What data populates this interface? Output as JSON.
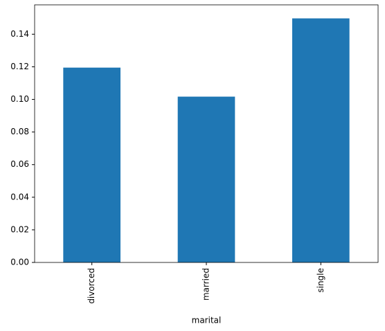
{
  "chart_data": {
    "type": "bar",
    "xlabel": "marital",
    "categories": [
      "divorced",
      "married",
      "single"
    ],
    "values": [
      0.1195,
      0.1017,
      0.1497
    ],
    "color": "#1f77b4",
    "ylim": [
      0,
      0.158
    ],
    "yticks": [
      {
        "value": 0,
        "label": "0.00"
      },
      {
        "value": 0.02,
        "label": "0.02"
      },
      {
        "value": 0.04,
        "label": "0.04"
      },
      {
        "value": 0.06,
        "label": "0.06"
      },
      {
        "value": 0.08,
        "label": "0.08"
      },
      {
        "value": 0.1,
        "label": "0.10"
      },
      {
        "value": 0.12,
        "label": "0.12"
      },
      {
        "value": 0.14,
        "label": "0.14"
      }
    ],
    "grid": false
  }
}
